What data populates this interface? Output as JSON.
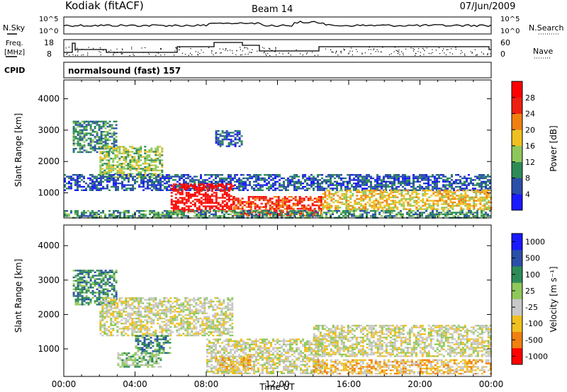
{
  "header": {
    "station": "Kodiak (fitACF)",
    "beam": "Beam 14",
    "date": "07/Jun/2009"
  },
  "strips": {
    "nsky_label": "N.Sky",
    "nsearch_label": "N.Search",
    "noise_ticks": [
      "10^5",
      "10^0"
    ],
    "freq_label_1": "Freq.",
    "freq_label_2": "[MHz]",
    "freq_ticks": [
      "18",
      "8"
    ],
    "nave_label": "Nave",
    "nave_ticks": [
      "60",
      "0"
    ],
    "cpid_label": "CPID",
    "cpid_text": "normalsound (fast) 157"
  },
  "chart_data": [
    {
      "type": "heatmap",
      "quantity": "Power",
      "ylabel": "Slant Range [km]",
      "y_ticks": [
        1000,
        2000,
        3000,
        4000
      ],
      "ylim": [
        200,
        4600
      ],
      "xlim": [
        0,
        24
      ],
      "colorbar": {
        "label": "Power [dB]",
        "ticks": [
          4,
          8,
          12,
          16,
          20,
          24,
          28
        ],
        "range": [
          0,
          32
        ]
      },
      "colors": [
        "#1a1aff",
        "#2a4fa8",
        "#2e8b57",
        "#8fc85a",
        "#f0c020",
        "#f08010",
        "#ee2010",
        "#ff0000"
      ],
      "regions": [
        {
          "t0": 0.5,
          "t1": 3.0,
          "r0": 2300,
          "r1": 3300,
          "level": 2
        },
        {
          "t0": 2.0,
          "t1": 5.5,
          "r0": 1500,
          "r1": 2500,
          "level": 3
        },
        {
          "t0": 0.0,
          "t1": 24.0,
          "r0": 1100,
          "r1": 1600,
          "level": 1
        },
        {
          "t0": 6.0,
          "t1": 9.5,
          "r0": 400,
          "r1": 1300,
          "level": 7
        },
        {
          "t0": 9.5,
          "t1": 14.5,
          "r0": 300,
          "r1": 900,
          "level": 6
        },
        {
          "t0": 14.5,
          "t1": 24.0,
          "r0": 500,
          "r1": 1100,
          "level": 4
        },
        {
          "t0": 8.5,
          "t1": 10.0,
          "r0": 2500,
          "r1": 3000,
          "level": 1
        },
        {
          "t0": 0.0,
          "t1": 24.0,
          "r0": 200,
          "r1": 450,
          "level": 2
        }
      ]
    },
    {
      "type": "heatmap",
      "quantity": "Velocity",
      "ylabel": "Slant Range [km]",
      "xlabel": "Time UT",
      "y_ticks": [
        1000,
        2000,
        3000,
        4000
      ],
      "x_ticks": [
        "00:00",
        "04:00",
        "08:00",
        "12:00",
        "16:00",
        "20:00",
        "00:00"
      ],
      "ylim": [
        200,
        4600
      ],
      "xlim": [
        0,
        24
      ],
      "colorbar": {
        "label": "Velocity [m s⁻¹]",
        "ticks": [
          "1000",
          "500",
          "100",
          "25",
          "-25",
          "-100",
          "-500",
          "-1000"
        ]
      },
      "colors": [
        "#1a1aff",
        "#2a4fa8",
        "#2e8b57",
        "#8fc85a",
        "#c8c8c8",
        "#f0c020",
        "#f08010",
        "#ff0000"
      ],
      "regions": [
        {
          "t0": 0.5,
          "t1": 3.0,
          "r0": 2300,
          "r1": 3300,
          "level": 2
        },
        {
          "t0": 2.0,
          "t1": 9.5,
          "r0": 1400,
          "r1": 2500,
          "level": 4
        },
        {
          "t0": 4.0,
          "t1": 6.0,
          "r0": 900,
          "r1": 1400,
          "level": 2
        },
        {
          "t0": 8.0,
          "t1": 14.5,
          "r0": 300,
          "r1": 1300,
          "level": 4
        },
        {
          "t0": 8.5,
          "t1": 10.5,
          "r0": 400,
          "r1": 800,
          "level": 5
        },
        {
          "t0": 14.0,
          "t1": 24.0,
          "r0": 300,
          "r1": 700,
          "level": 5
        },
        {
          "t0": 14.0,
          "t1": 24.0,
          "r0": 800,
          "r1": 1700,
          "level": 4
        },
        {
          "t0": 3.0,
          "t1": 5.5,
          "r0": 500,
          "r1": 900,
          "level": 3
        }
      ]
    }
  ]
}
